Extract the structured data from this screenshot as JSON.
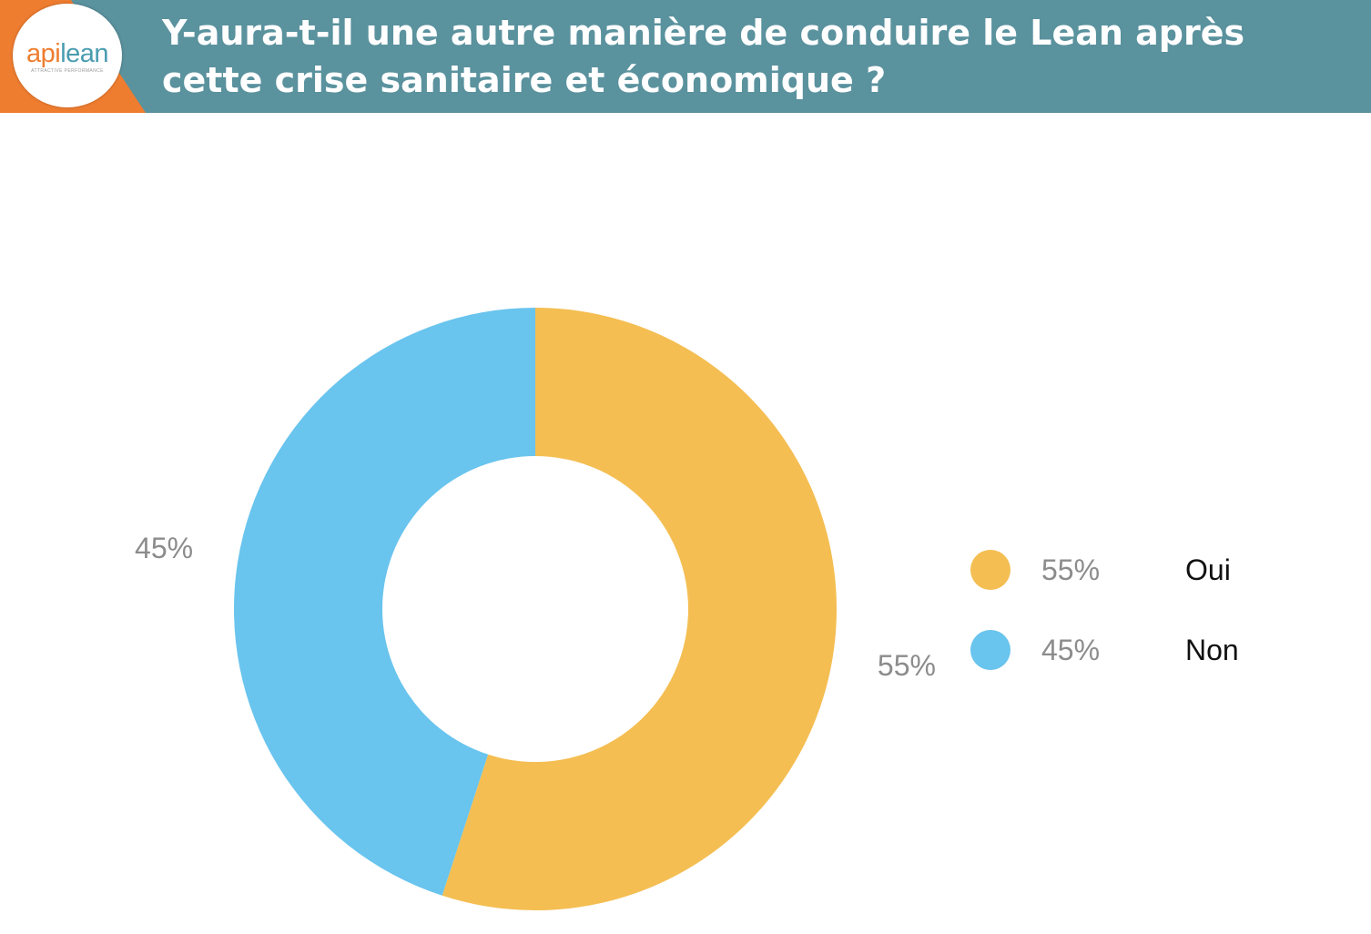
{
  "header": {
    "title": "Y-aura-t-il une autre manière de conduire le Lean après cette crise sanitaire et économique ?",
    "background_color": "#5a929e"
  },
  "logo": {
    "name_part1": "api",
    "name_part2": "lean",
    "tagline": "ATTRACTIVE PERFORMANCE",
    "color_part1": "#ee7d30",
    "color_part2": "#4a9cb0",
    "accent_color": "#ee7d30"
  },
  "chart_data": {
    "type": "pie",
    "style": "donut",
    "title": "",
    "slices": [
      {
        "label": "Oui",
        "value": 55,
        "display": "55%",
        "color": "#f4be52"
      },
      {
        "label": "Non",
        "value": 45,
        "display": "45%",
        "color": "#69c4ee"
      }
    ],
    "legend_position": "right"
  }
}
